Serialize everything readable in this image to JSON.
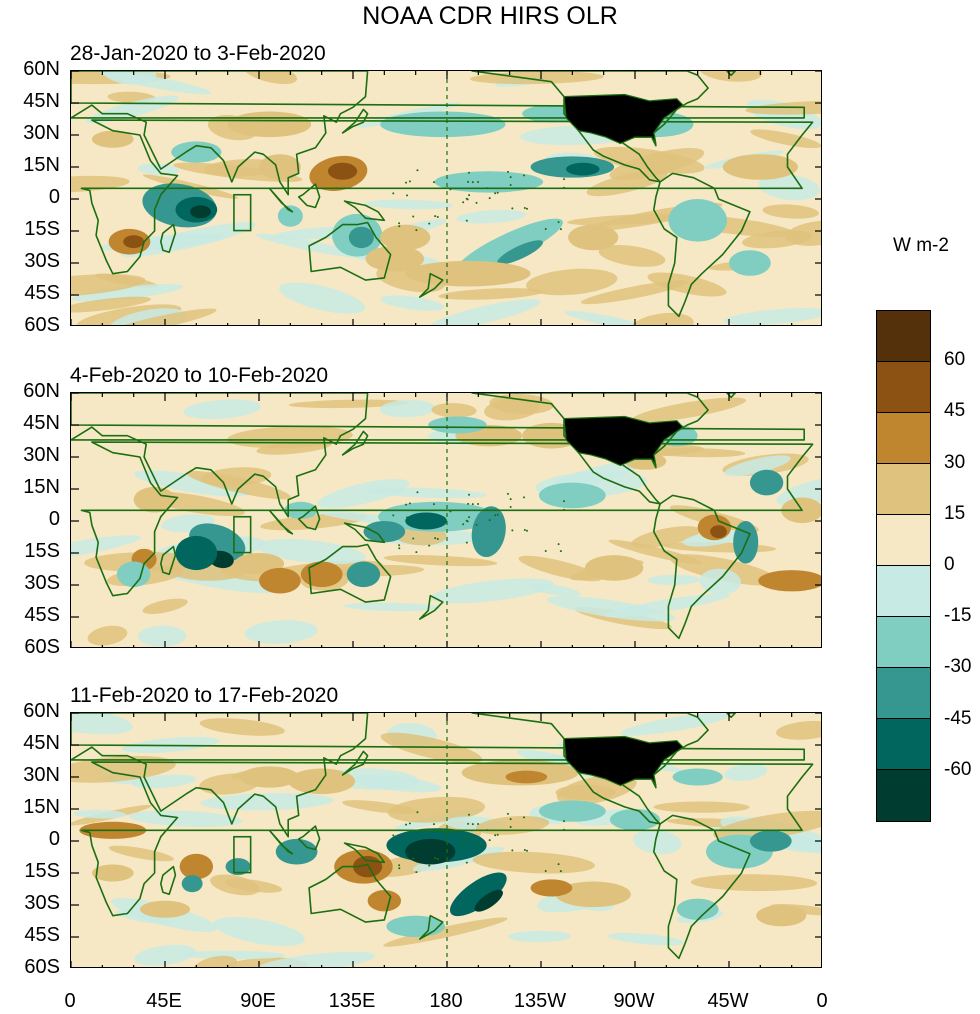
{
  "title": "NOAA CDR HIRS OLR",
  "panels": [
    {
      "label": "28-Jan-2020 to 3-Feb-2020"
    },
    {
      "label": "4-Feb-2020 to 10-Feb-2020"
    },
    {
      "label": "11-Feb-2020 to 17-Feb-2020"
    }
  ],
  "y_ticks": [
    "60N",
    "45N",
    "30N",
    "15N",
    "0",
    "15S",
    "30S",
    "45S",
    "60S"
  ],
  "x_ticks": [
    "0",
    "45E",
    "90E",
    "135E",
    "180",
    "135W",
    "90W",
    "45W",
    "0"
  ],
  "colorbar": {
    "units": "W m-2",
    "labels": [
      "60",
      "45",
      "30",
      "15",
      "0",
      "-15",
      "-30",
      "-45",
      "-60"
    ],
    "colors": [
      "#54310a",
      "#8c5213",
      "#c0862f",
      "#dfc27d",
      "#f6e8c4",
      "#c8eae4",
      "#80cdc1",
      "#35978f",
      "#01665e",
      "#003c30"
    ]
  },
  "colors": {
    "coast": "#1b6e12",
    "land_mask": "#000000"
  }
}
